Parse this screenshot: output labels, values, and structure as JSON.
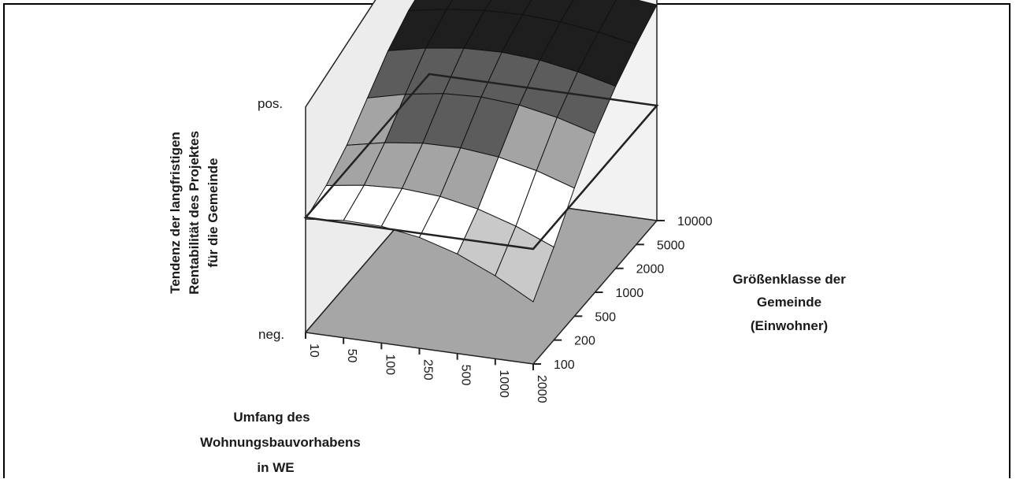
{
  "chart_data": {
    "type": "surface",
    "title": "",
    "zlabel": [
      "Tendenz der langfristigen",
      "Rentabilität des Projektes",
      "für die Gemeinde"
    ],
    "xlabel": [
      "Umfang des",
      "Wohnungsbauvorhabens",
      "in WE"
    ],
    "ylabel": [
      "Größenklasse der",
      "Gemeinde",
      "(Einwohner)"
    ],
    "z_ticks": [
      "neg.",
      "pos."
    ],
    "x_categories": [
      "10",
      "50",
      "100",
      "250",
      "500",
      "1000",
      "2000"
    ],
    "y_categories": [
      "100",
      "200",
      "500",
      "1000",
      "2000",
      "5000",
      "10000"
    ],
    "z_range": [
      -1,
      1
    ],
    "grid": true,
    "legend": "none",
    "colors": [
      "#9c9c9c",
      "#c9c9c9",
      "#ffffff",
      "#a4a4a4",
      "#5c5c5c",
      "#1e1e1e",
      "#8a8a8a",
      "#c4c4c4"
    ]
  }
}
